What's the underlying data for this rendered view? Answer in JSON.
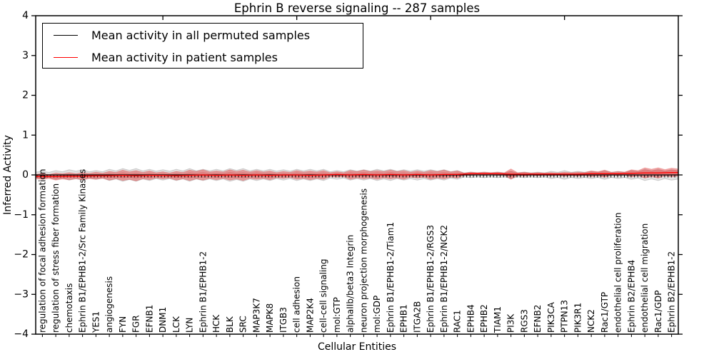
{
  "chart_data": {
    "type": "violin",
    "title": "Ephrin B reverse signaling -- 287 samples",
    "xlabel": "Cellular Entities",
    "ylabel": "Inferred Activity",
    "ylim": [
      -4,
      4
    ],
    "yticks": [
      4,
      3,
      2,
      1,
      0,
      -1,
      -2,
      -3,
      -4
    ],
    "xticks_major": [
      10,
      20,
      30,
      40
    ],
    "grid": false,
    "legend_position": "upper left",
    "legend": [
      {
        "label": "Mean activity in all permuted samples",
        "color": "#000000"
      },
      {
        "label": "Mean activity in patient samples",
        "color": "#ff0000"
      }
    ],
    "band_colors": {
      "permuted": "#c8c8c8",
      "patient": "#f08080"
    },
    "categories": [
      "regulation of focal adhesion formation",
      "regulation of stress fiber formation",
      "chemotaxis",
      "Ephrin B1/EPHB1-2/Src Family Kinases",
      "YES1",
      "angiogenesis",
      "FYN",
      "FGR",
      "EFNB1",
      "DNM1",
      "LCK",
      "LYN",
      "Ephrin B1/EPHB1-2",
      "HCK",
      "BLK",
      "SRC",
      "MAP3K7",
      "MAPK8",
      "ITGB3",
      "cell adhesion",
      "MAP2K4",
      "cell-cell signaling",
      "mol:GTP",
      "alphaIIb/beta3 Integrin",
      "neuron projection morphogenesis",
      "mol:GDP",
      "Ephrin B1/EPHB1-2/Tiam1",
      "EPHB1",
      "ITGA2B",
      "Ephrin B1/EPHB1-2/RGS3",
      "Ephrin B1/EPHB1-2/NCK2",
      "RAC1",
      "EPHB4",
      "EPHB2",
      "TIAM1",
      "PI3K",
      "RGS3",
      "EFNB2",
      "PIK3CA",
      "PTPN13",
      "PIK3R1",
      "NCK2",
      "Rac1/GTP",
      "endothelial cell proliferation",
      "Ephrin B2/EPHB4",
      "endothelial cell migration",
      "Rac1/GDP",
      "Ephrin B2/EPHB1-2"
    ],
    "series": [
      {
        "name": "Mean activity in all permuted samples",
        "color": "#000000",
        "values": [
          0,
          0,
          0,
          0,
          0,
          0,
          0,
          0,
          0,
          0,
          0,
          0,
          0,
          0,
          0,
          0,
          0,
          0,
          0,
          0,
          0,
          0,
          0,
          0,
          0,
          0,
          0,
          0,
          0,
          0,
          0,
          0,
          0,
          0,
          0,
          0,
          0,
          0,
          0,
          0,
          0,
          0,
          0,
          0,
          0,
          0,
          0,
          0
        ]
      },
      {
        "name": "Mean activity in patient samples",
        "color": "#ff0000",
        "values": [
          -0.04,
          -0.04,
          -0.03,
          -0.03,
          -0.02,
          -0.02,
          -0.01,
          -0.02,
          -0.01,
          -0.01,
          -0.02,
          -0.01,
          0,
          -0.01,
          0,
          -0.01,
          0,
          -0.01,
          0,
          0,
          -0.01,
          0,
          0.01,
          0,
          0.01,
          0,
          0.01,
          0,
          0.01,
          0,
          0.01,
          0.01,
          0.03,
          0.03,
          0.03,
          0.02,
          0.02,
          0.02,
          0.02,
          0.02,
          0.02,
          0.03,
          0.03,
          0.03,
          0.04,
          0.05,
          0.05,
          0.06
        ]
      }
    ],
    "bands": [
      {
        "name": "permuted activity spread halfwidth",
        "color": "#c8c8c8",
        "halfwidths": [
          0.09,
          0.11,
          0.13,
          0.13,
          0.11,
          0.14,
          0.16,
          0.16,
          0.14,
          0.13,
          0.14,
          0.16,
          0.14,
          0.14,
          0.16,
          0.16,
          0.14,
          0.14,
          0.13,
          0.14,
          0.14,
          0.14,
          0.11,
          0.13,
          0.13,
          0.14,
          0.14,
          0.13,
          0.13,
          0.13,
          0.13,
          0.11,
          0.07,
          0.07,
          0.07,
          0.09,
          0.07,
          0.07,
          0.09,
          0.11,
          0.09,
          0.09,
          0.11,
          0.09,
          0.11,
          0.14,
          0.14,
          0.13
        ]
      },
      {
        "name": "patient activity spread halfwidth",
        "color": "#f08080",
        "halfwidths": [
          0.07,
          0.09,
          0.09,
          0.09,
          0.09,
          0.11,
          0.13,
          0.13,
          0.11,
          0.09,
          0.11,
          0.13,
          0.13,
          0.11,
          0.13,
          0.13,
          0.11,
          0.11,
          0.09,
          0.11,
          0.11,
          0.11,
          0.07,
          0.11,
          0.11,
          0.11,
          0.11,
          0.11,
          0.09,
          0.11,
          0.11,
          0.09,
          0.04,
          0.04,
          0.04,
          0.13,
          0.05,
          0.04,
          0.04,
          0.05,
          0.05,
          0.07,
          0.09,
          0.05,
          0.09,
          0.13,
          0.13,
          0.11
        ]
      }
    ]
  }
}
